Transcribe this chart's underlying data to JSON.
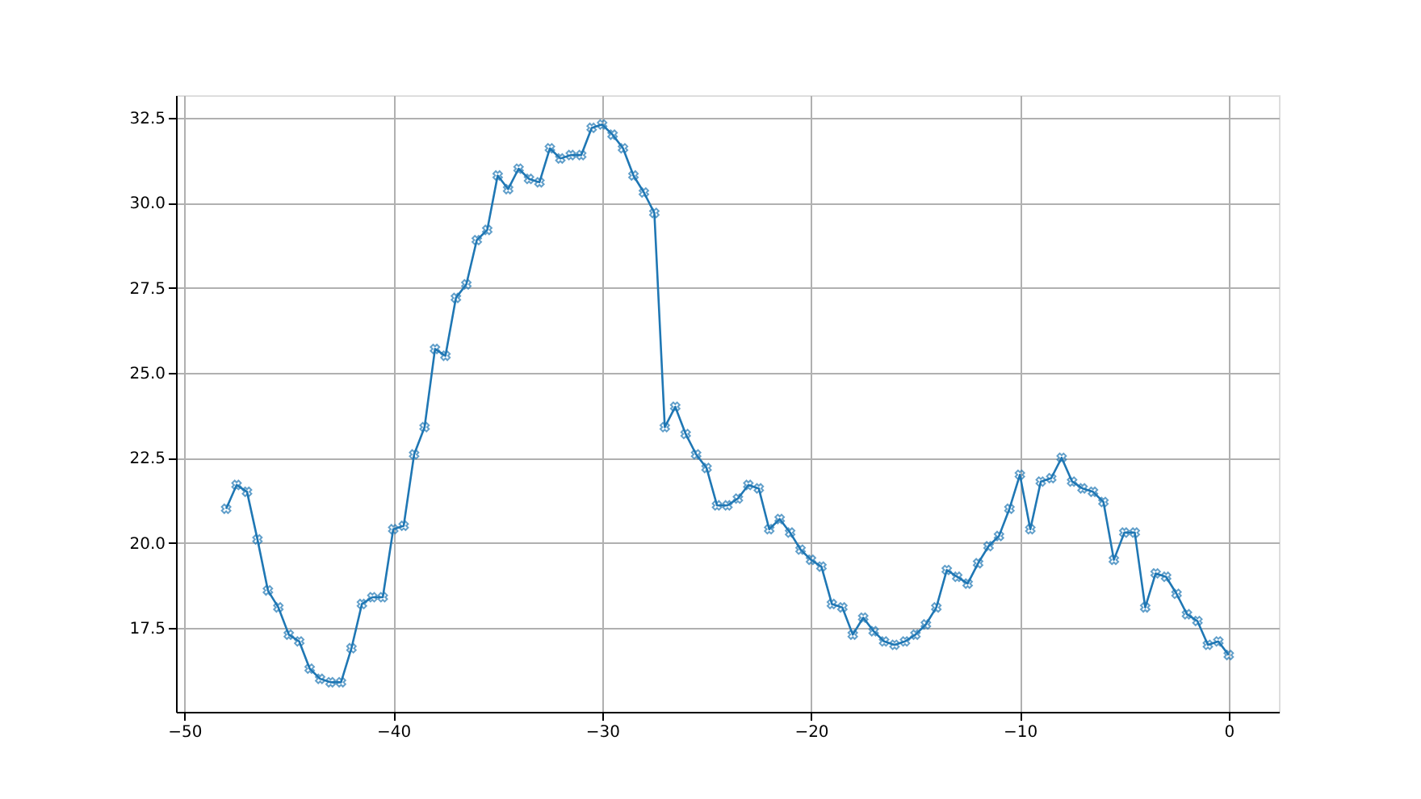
{
  "chart_data": {
    "type": "line",
    "x": [
      -48,
      -47.5,
      -47,
      -46.5,
      -46,
      -45.5,
      -45,
      -44.5,
      -44,
      -43.5,
      -43,
      -42.5,
      -42,
      -41.5,
      -41,
      -40.5,
      -40,
      -39.5,
      -39,
      -38.5,
      -38,
      -37.5,
      -37,
      -36.5,
      -36,
      -35.5,
      -35,
      -34.5,
      -34,
      -33.5,
      -33,
      -32.5,
      -32,
      -31.5,
      -31,
      -30.5,
      -30,
      -29.5,
      -29,
      -28.5,
      -28,
      -27.5,
      -27,
      -26.5,
      -26,
      -25.5,
      -25,
      -24.5,
      -24,
      -23.5,
      -23,
      -22.5,
      -22,
      -21.5,
      -21,
      -20.5,
      -20,
      -19.5,
      -19,
      -18.5,
      -18,
      -17.5,
      -17,
      -16.5,
      -16,
      -15.5,
      -15,
      -14.5,
      -14,
      -13.5,
      -13,
      -12.5,
      -12,
      -11.5,
      -11,
      -10.5,
      -10,
      -9.5,
      -9,
      -8.5,
      -8,
      -7.5,
      -7,
      -6.5,
      -6,
      -5.5,
      -5,
      -4.5,
      -4,
      -3.5,
      -3,
      -2.5,
      -2,
      -1.5,
      -1,
      -0.5,
      0
    ],
    "series": [
      {
        "color": "#1f77b4",
        "values": [
          21.0,
          21.7,
          21.5,
          20.1,
          18.6,
          18.1,
          17.3,
          17.1,
          16.3,
          16.0,
          15.9,
          15.9,
          16.9,
          18.2,
          18.4,
          18.4,
          20.4,
          20.5,
          22.6,
          23.4,
          25.7,
          25.5,
          27.2,
          27.6,
          28.9,
          29.2,
          30.8,
          30.4,
          31.0,
          30.7,
          30.6,
          31.6,
          31.3,
          31.4,
          31.4,
          32.2,
          32.3,
          32.0,
          31.6,
          30.8,
          30.3,
          29.7,
          23.4,
          24.0,
          23.2,
          22.6,
          22.2,
          21.1,
          21.1,
          21.3,
          21.7,
          21.6,
          20.4,
          20.7,
          20.3,
          19.8,
          19.5,
          19.3,
          18.2,
          18.1,
          17.3,
          17.8,
          17.4,
          17.1,
          17.0,
          17.1,
          17.3,
          17.6,
          18.1,
          19.2,
          19.0,
          18.8,
          19.4,
          19.9,
          20.2,
          21.0,
          22.0,
          20.4,
          21.8,
          21.9,
          22.5,
          21.8,
          21.6,
          21.5,
          21.2,
          19.5,
          20.3,
          20.3,
          18.1,
          19.1,
          19.0,
          18.5,
          17.9,
          17.7,
          17.0,
          17.1,
          16.7
        ]
      }
    ],
    "xlim": [
      -50.4,
      2.4
    ],
    "ylim": [
      15.03,
      33.16
    ],
    "xticks": [
      -50,
      -40,
      -30,
      -20,
      -10,
      0
    ],
    "yticks": [
      17.5,
      {
        "value": 20,
        "label": "20.0"
      },
      22.5,
      {
        "value": 25,
        "label": "25.0"
      },
      27.5,
      {
        "value": 30,
        "label": "30.0"
      },
      32.5
    ],
    "grid": true,
    "marker": "cross",
    "line_style": "solid"
  }
}
